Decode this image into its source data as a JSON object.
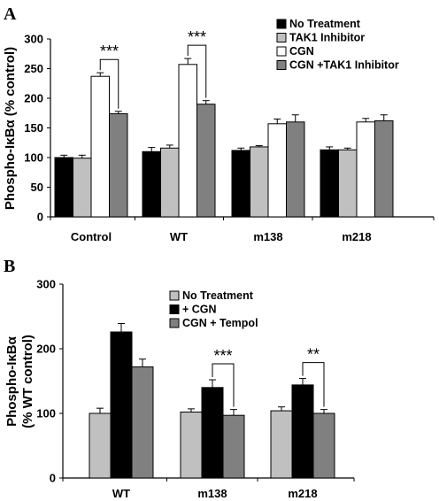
{
  "chart_data": [
    {
      "type": "bar",
      "panel_label": "A",
      "categories": [
        "Control",
        "WT",
        "m138",
        "m218"
      ],
      "ylabel": "Phospho-IκBα (% control)",
      "ylim": [
        0,
        300
      ],
      "yticks": [
        0,
        50,
        100,
        150,
        200,
        250,
        300
      ],
      "legend_position": "top-right",
      "series": [
        {
          "name": "No Treatment",
          "color": "#000000",
          "values": [
            100,
            110,
            112,
            113
          ],
          "errors": [
            4,
            7,
            4,
            5
          ]
        },
        {
          "name": "TAK1 Inhibitor",
          "color": "#c0c0c0",
          "values": [
            99,
            116,
            118,
            113
          ],
          "errors": [
            5,
            5,
            2,
            3
          ]
        },
        {
          "name": "CGN",
          "color": "#ffffff",
          "values": [
            237,
            257,
            157,
            160
          ],
          "errors": [
            6,
            10,
            8,
            6
          ]
        },
        {
          "name": "CGN +TAK1 Inhibitor",
          "color": "#808080",
          "values": [
            174,
            190,
            160,
            162
          ],
          "errors": [
            4,
            6,
            12,
            10
          ]
        }
      ],
      "annotations": [
        {
          "text": "***",
          "category": "Control",
          "between": [
            "CGN",
            "CGN +TAK1 Inhibitor"
          ]
        },
        {
          "text": "***",
          "category": "WT",
          "between": [
            "CGN",
            "CGN +TAK1 Inhibitor"
          ]
        }
      ]
    },
    {
      "type": "bar",
      "panel_label": "B",
      "categories": [
        "WT",
        "m138",
        "m218"
      ],
      "ylabel_line1": "Phospho-IκBα",
      "ylabel_line2": "(% WT control)",
      "ylim": [
        0,
        300
      ],
      "yticks": [
        0,
        100,
        200,
        300
      ],
      "legend_position": "top-center",
      "series": [
        {
          "name": "No Treatment",
          "color": "#c0c0c0",
          "values": [
            100,
            102,
            104
          ],
          "errors": [
            8,
            5,
            6
          ]
        },
        {
          "name": "+ CGN",
          "color": "#000000",
          "values": [
            226,
            140,
            144
          ],
          "errors": [
            13,
            12,
            10
          ]
        },
        {
          "name": "CGN + Tempol",
          "color": "#808080",
          "values": [
            172,
            97,
            100
          ],
          "errors": [
            12,
            9,
            6
          ]
        }
      ],
      "annotations": [
        {
          "text": "***",
          "category": "m138",
          "between": [
            "+ CGN",
            "CGN + Tempol"
          ]
        },
        {
          "text": "**",
          "category": "m218",
          "between": [
            "+ CGN",
            "CGN + Tempol"
          ]
        }
      ]
    }
  ]
}
